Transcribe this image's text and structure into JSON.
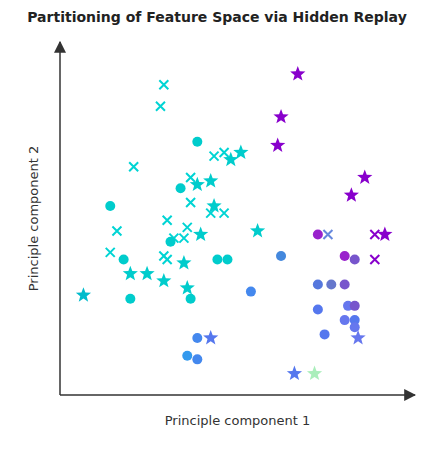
{
  "chart_data": {
    "type": "scatter",
    "title": "Partitioning of Feature Space via Hidden Replay",
    "xlabel": "Principle component 1",
    "ylabel": "Principle component 2",
    "xlim": [
      -0.03,
      1.03
    ],
    "ylim": [
      0.06,
      1.05
    ],
    "tick_labels": false,
    "grid": false,
    "series": [
      {
        "marker": "x",
        "x": [
          0.28,
          0.27,
          0.43,
          0.46,
          0.19,
          0.36,
          0.36,
          0.42,
          0.46,
          0.29,
          0.35,
          0.14,
          0.31,
          0.34,
          0.77,
          0.91,
          0.12,
          0.28,
          0.29,
          0.91
        ],
        "values": [
          0.93,
          0.87,
          0.73,
          0.74,
          0.7,
          0.67,
          0.6,
          0.57,
          0.57,
          0.55,
          0.53,
          0.52,
          0.5,
          0.5,
          0.51,
          0.51,
          0.46,
          0.45,
          0.44,
          0.44
        ],
        "colors": [
          "#00d4d4",
          "#00d4d4",
          "#00d4d4",
          "#00d4d4",
          "#00d4d4",
          "#00d4d4",
          "#00d4d4",
          "#00d4d4",
          "#00d4d4",
          "#00d4d4",
          "#00d4d4",
          "#00d4d4",
          "#00d4d4",
          "#00d4d4",
          "#6688dd",
          "#8800cc",
          "#00d4d4",
          "#00d4d4",
          "#00d4d4",
          "#8800cc"
        ]
      },
      {
        "marker": "star",
        "x": [
          0.68,
          0.63,
          0.48,
          0.51,
          0.62,
          0.38,
          0.42,
          0.88,
          0.84,
          0.43,
          0.39,
          0.56,
          0.94,
          0.34,
          0.18,
          0.23,
          0.28,
          0.35,
          0.04,
          0.42,
          0.86,
          0.67,
          0.73
        ],
        "values": [
          0.96,
          0.84,
          0.72,
          0.74,
          0.76,
          0.65,
          0.66,
          0.67,
          0.62,
          0.59,
          0.51,
          0.52,
          0.51,
          0.43,
          0.4,
          0.4,
          0.38,
          0.36,
          0.34,
          0.22,
          0.22,
          0.12,
          0.12
        ],
        "colors": [
          "#8800cc",
          "#8800cc",
          "#00cccc",
          "#00cccc",
          "#8800cc",
          "#00cccc",
          "#00cccc",
          "#8800cc",
          "#8800cc",
          "#00cccc",
          "#00cccc",
          "#00cccc",
          "#8800cc",
          "#00cccc",
          "#00cccc",
          "#00cccc",
          "#00cccc",
          "#00cccc",
          "#00bbcc",
          "#5577ee",
          "#6677ee",
          "#5577ee",
          "#aaeebb"
        ]
      },
      {
        "marker": "circle",
        "x": [
          0.38,
          0.33,
          0.12,
          0.3,
          0.74,
          0.16,
          0.44,
          0.47,
          0.63,
          0.82,
          0.85,
          0.74,
          0.78,
          0.82,
          0.18,
          0.36,
          0.54,
          0.74,
          0.83,
          0.85,
          0.82,
          0.85,
          0.85,
          0.38,
          0.76,
          0.35,
          0.38
        ],
        "values": [
          0.77,
          0.64,
          0.59,
          0.49,
          0.51,
          0.44,
          0.44,
          0.44,
          0.45,
          0.45,
          0.44,
          0.37,
          0.37,
          0.37,
          0.33,
          0.33,
          0.35,
          0.3,
          0.31,
          0.31,
          0.27,
          0.27,
          0.25,
          0.22,
          0.23,
          0.17,
          0.16
        ],
        "colors": [
          "#00cccc",
          "#00cccc",
          "#00cccc",
          "#00cccc",
          "#9922cc",
          "#00cccc",
          "#00cccc",
          "#00cccc",
          "#4488dd",
          "#9922cc",
          "#7755cc",
          "#5577dd",
          "#6677cc",
          "#7755cc",
          "#00cccc",
          "#00cccc",
          "#4488ee",
          "#5577ee",
          "#6677ee",
          "#7755cc",
          "#6677ee",
          "#5577ee",
          "#6677ee",
          "#4488ee",
          "#5577ee",
          "#3399ee",
          "#4488ee"
        ]
      }
    ]
  }
}
